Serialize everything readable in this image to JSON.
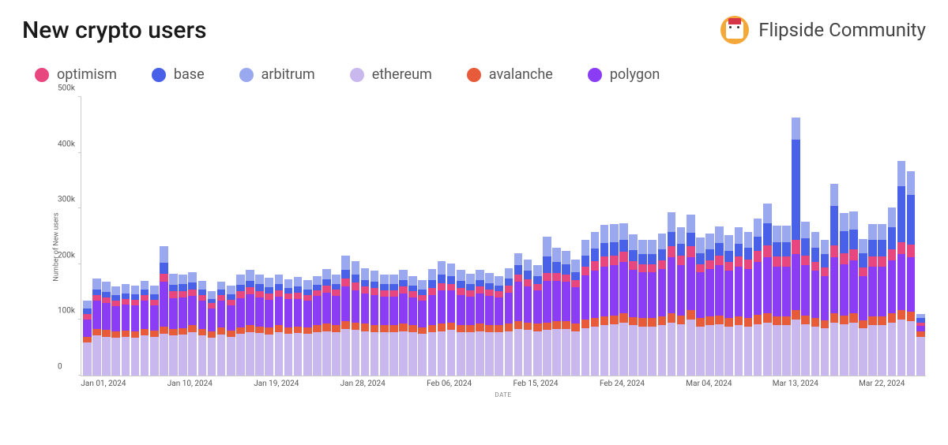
{
  "header": {
    "title": "New crypto users",
    "brand": "Flipside Community"
  },
  "chart": {
    "type": "stacked-bar",
    "ylabel": "Number of New users",
    "xlabel": "DATE",
    "ylim": [
      0,
      500000
    ],
    "ytick_step": 100000,
    "yticks": [
      {
        "v": 0,
        "label": "0"
      },
      {
        "v": 100000,
        "label": "100k"
      },
      {
        "v": 200000,
        "label": "200k"
      },
      {
        "v": 300000,
        "label": "300k"
      },
      {
        "v": 400000,
        "label": "400k"
      },
      {
        "v": 500000,
        "label": "500k"
      }
    ],
    "background_color": "#ffffff",
    "axis_color": "#cccccc",
    "tick_font_color": "#555555",
    "series": [
      {
        "key": "optimism",
        "label": "optimism",
        "color": "#e8467f"
      },
      {
        "key": "base",
        "label": "base",
        "color": "#4960e8"
      },
      {
        "key": "arbitrum",
        "label": "arbitrum",
        "color": "#9aa8ef"
      },
      {
        "key": "ethereum",
        "label": "ethereum",
        "color": "#c8b8ed"
      },
      {
        "key": "avalanche",
        "label": "avalanche",
        "color": "#e85b3a"
      },
      {
        "key": "polygon",
        "label": "polygon",
        "color": "#8a3df5"
      }
    ],
    "stack_order": [
      "ethereum",
      "avalanche",
      "polygon",
      "optimism",
      "base",
      "arbitrum"
    ],
    "xticks": [
      {
        "idx": 0,
        "label": "Jan 01, 2024"
      },
      {
        "idx": 9,
        "label": "Jan 10, 2024"
      },
      {
        "idx": 18,
        "label": "Jan 19, 2024"
      },
      {
        "idx": 27,
        "label": "Jan 28, 2024"
      },
      {
        "idx": 36,
        "label": "Feb 06, 2024"
      },
      {
        "idx": 45,
        "label": "Feb 15, 2024"
      },
      {
        "idx": 54,
        "label": "Feb 24, 2024"
      },
      {
        "idx": 63,
        "label": "Mar 04, 2024"
      },
      {
        "idx": 72,
        "label": "Mar 13, 2024"
      },
      {
        "idx": 81,
        "label": "Mar 22, 2024"
      }
    ],
    "data": [
      {
        "ethereum": 60000,
        "avalanche": 10000,
        "polygon": 30000,
        "optimism": 10000,
        "base": 10000,
        "arbitrum": 15000
      },
      {
        "ethereum": 72000,
        "avalanche": 12000,
        "polygon": 50000,
        "optimism": 10000,
        "base": 10000,
        "arbitrum": 20000
      },
      {
        "ethereum": 70000,
        "avalanche": 12000,
        "polygon": 48000,
        "optimism": 10000,
        "base": 10000,
        "arbitrum": 18000
      },
      {
        "ethereum": 68000,
        "avalanche": 11000,
        "polygon": 45000,
        "optimism": 10000,
        "base": 10000,
        "arbitrum": 16000
      },
      {
        "ethereum": 70000,
        "avalanche": 11000,
        "polygon": 46000,
        "optimism": 10000,
        "base": 10000,
        "arbitrum": 17000
      },
      {
        "ethereum": 68000,
        "avalanche": 12000,
        "polygon": 46000,
        "optimism": 10000,
        "base": 10000,
        "arbitrum": 15000
      },
      {
        "ethereum": 72000,
        "avalanche": 12000,
        "polygon": 50000,
        "optimism": 10000,
        "base": 10000,
        "arbitrum": 16000
      },
      {
        "ethereum": 70000,
        "avalanche": 11000,
        "polygon": 45000,
        "optimism": 10000,
        "base": 10000,
        "arbitrum": 15000
      },
      {
        "ethereum": 75000,
        "avalanche": 13000,
        "polygon": 80000,
        "optimism": 15000,
        "base": 20000,
        "arbitrum": 30000
      },
      {
        "ethereum": 72000,
        "avalanche": 12000,
        "polygon": 55000,
        "optimism": 12000,
        "base": 12000,
        "arbitrum": 20000
      },
      {
        "ethereum": 73000,
        "avalanche": 12000,
        "polygon": 55000,
        "optimism": 12000,
        "base": 12000,
        "arbitrum": 18000
      },
      {
        "ethereum": 78000,
        "avalanche": 13000,
        "polygon": 52000,
        "optimism": 12000,
        "base": 12000,
        "arbitrum": 18000
      },
      {
        "ethereum": 72000,
        "avalanche": 12000,
        "polygon": 50000,
        "optimism": 10000,
        "base": 10000,
        "arbitrum": 16000
      },
      {
        "ethereum": 68000,
        "avalanche": 11000,
        "polygon": 42000,
        "optimism": 9000,
        "base": 8000,
        "arbitrum": 14000
      },
      {
        "ethereum": 74000,
        "avalanche": 12000,
        "polygon": 48000,
        "optimism": 10000,
        "base": 10000,
        "arbitrum": 15000
      },
      {
        "ethereum": 70000,
        "avalanche": 11000,
        "polygon": 45000,
        "optimism": 10000,
        "base": 10000,
        "arbitrum": 15000
      },
      {
        "ethereum": 75000,
        "avalanche": 12000,
        "polygon": 52000,
        "optimism": 12000,
        "base": 12000,
        "arbitrum": 18000
      },
      {
        "ethereum": 78000,
        "avalanche": 13000,
        "polygon": 55000,
        "optimism": 12000,
        "base": 12000,
        "arbitrum": 20000
      },
      {
        "ethereum": 76000,
        "avalanche": 12000,
        "polygon": 52000,
        "optimism": 12000,
        "base": 12000,
        "arbitrum": 18000
      },
      {
        "ethereum": 74000,
        "avalanche": 12000,
        "polygon": 50000,
        "optimism": 11000,
        "base": 11000,
        "arbitrum": 17000
      },
      {
        "ethereum": 78000,
        "avalanche": 12000,
        "polygon": 52000,
        "optimism": 11000,
        "base": 11000,
        "arbitrum": 17000
      },
      {
        "ethereum": 75000,
        "avalanche": 12000,
        "polygon": 50000,
        "optimism": 10000,
        "base": 10000,
        "arbitrum": 16000
      },
      {
        "ethereum": 76000,
        "avalanche": 12000,
        "polygon": 50000,
        "optimism": 11000,
        "base": 11000,
        "arbitrum": 17000
      },
      {
        "ethereum": 75000,
        "avalanche": 12000,
        "polygon": 48000,
        "optimism": 10000,
        "base": 10000,
        "arbitrum": 16000
      },
      {
        "ethereum": 78000,
        "avalanche": 13000,
        "polygon": 52000,
        "optimism": 10000,
        "base": 10000,
        "arbitrum": 16000
      },
      {
        "ethereum": 80000,
        "avalanche": 14000,
        "polygon": 55000,
        "optimism": 12000,
        "base": 12000,
        "arbitrum": 18000
      },
      {
        "ethereum": 78000,
        "avalanche": 13000,
        "polygon": 52000,
        "optimism": 11000,
        "base": 11000,
        "arbitrum": 17000
      },
      {
        "ethereum": 84000,
        "avalanche": 14000,
        "polygon": 62000,
        "optimism": 14000,
        "base": 16000,
        "arbitrum": 25000
      },
      {
        "ethereum": 82000,
        "avalanche": 13000,
        "polygon": 58000,
        "optimism": 14000,
        "base": 15000,
        "arbitrum": 24000
      },
      {
        "ethereum": 80000,
        "avalanche": 13000,
        "polygon": 55000,
        "optimism": 12000,
        "base": 12000,
        "arbitrum": 20000
      },
      {
        "ethereum": 78000,
        "avalanche": 13000,
        "polygon": 54000,
        "optimism": 12000,
        "base": 12000,
        "arbitrum": 20000
      },
      {
        "ethereum": 78000,
        "avalanche": 12000,
        "polygon": 52000,
        "optimism": 11000,
        "base": 11000,
        "arbitrum": 18000
      },
      {
        "ethereum": 78000,
        "avalanche": 12000,
        "polygon": 52000,
        "optimism": 11000,
        "base": 11000,
        "arbitrum": 18000
      },
      {
        "ethereum": 80000,
        "avalanche": 13000,
        "polygon": 55000,
        "optimism": 12000,
        "base": 12000,
        "arbitrum": 18000
      },
      {
        "ethereum": 78000,
        "avalanche": 12000,
        "polygon": 50000,
        "optimism": 11000,
        "base": 11000,
        "arbitrum": 17000
      },
      {
        "ethereum": 75000,
        "avalanche": 12000,
        "polygon": 48000,
        "optimism": 10000,
        "base": 10000,
        "arbitrum": 16000
      },
      {
        "ethereum": 78000,
        "avalanche": 12000,
        "polygon": 55000,
        "optimism": 12000,
        "base": 14000,
        "arbitrum": 20000
      },
      {
        "ethereum": 80000,
        "avalanche": 13000,
        "polygon": 60000,
        "optimism": 13000,
        "base": 15000,
        "arbitrum": 25000
      },
      {
        "ethereum": 82000,
        "avalanche": 13000,
        "polygon": 58000,
        "optimism": 12000,
        "base": 14000,
        "arbitrum": 22000
      },
      {
        "ethereum": 78000,
        "avalanche": 13000,
        "polygon": 54000,
        "optimism": 12000,
        "base": 13000,
        "arbitrum": 20000
      },
      {
        "ethereum": 78000,
        "avalanche": 12000,
        "polygon": 52000,
        "optimism": 11000,
        "base": 12000,
        "arbitrum": 18000
      },
      {
        "ethereum": 80000,
        "avalanche": 13000,
        "polygon": 55000,
        "optimism": 12000,
        "base": 12000,
        "arbitrum": 18000
      },
      {
        "ethereum": 78000,
        "avalanche": 13000,
        "polygon": 52000,
        "optimism": 11000,
        "base": 12000,
        "arbitrum": 18000
      },
      {
        "ethereum": 78000,
        "avalanche": 12000,
        "polygon": 50000,
        "optimism": 11000,
        "base": 11000,
        "arbitrum": 17000
      },
      {
        "ethereum": 80000,
        "avalanche": 13000,
        "polygon": 56000,
        "optimism": 12000,
        "base": 13000,
        "arbitrum": 19000
      },
      {
        "ethereum": 84000,
        "avalanche": 14000,
        "polygon": 70000,
        "optimism": 14000,
        "base": 16000,
        "arbitrum": 22000
      },
      {
        "ethereum": 82000,
        "avalanche": 13000,
        "polygon": 65000,
        "optimism": 13000,
        "base": 15000,
        "arbitrum": 20000
      },
      {
        "ethereum": 80000,
        "avalanche": 13000,
        "polygon": 60000,
        "optimism": 12000,
        "base": 14000,
        "arbitrum": 19000
      },
      {
        "ethereum": 82000,
        "avalanche": 13000,
        "polygon": 75000,
        "optimism": 14000,
        "base": 30000,
        "arbitrum": 35000
      },
      {
        "ethereum": 84000,
        "avalanche": 14000,
        "polygon": 72000,
        "optimism": 14000,
        "base": 20000,
        "arbitrum": 25000
      },
      {
        "ethereum": 84000,
        "avalanche": 14000,
        "polygon": 70000,
        "optimism": 14000,
        "base": 18000,
        "arbitrum": 24000
      },
      {
        "ethereum": 80000,
        "avalanche": 13000,
        "polygon": 65000,
        "optimism": 13000,
        "base": 15000,
        "arbitrum": 22000
      },
      {
        "ethereum": 85000,
        "avalanche": 15000,
        "polygon": 80000,
        "optimism": 16000,
        "base": 20000,
        "arbitrum": 28000
      },
      {
        "ethereum": 88000,
        "avalanche": 15000,
        "polygon": 85000,
        "optimism": 18000,
        "base": 22000,
        "arbitrum": 30000
      },
      {
        "ethereum": 90000,
        "avalanche": 16000,
        "polygon": 90000,
        "optimism": 18000,
        "base": 24000,
        "arbitrum": 32000
      },
      {
        "ethereum": 92000,
        "avalanche": 16000,
        "polygon": 90000,
        "optimism": 18000,
        "base": 24000,
        "arbitrum": 32000
      },
      {
        "ethereum": 95000,
        "avalanche": 17000,
        "polygon": 92000,
        "optimism": 18000,
        "base": 22000,
        "arbitrum": 30000
      },
      {
        "ethereum": 90000,
        "avalanche": 15000,
        "polygon": 85000,
        "optimism": 16000,
        "base": 20000,
        "arbitrum": 28000
      },
      {
        "ethereum": 88000,
        "avalanche": 15000,
        "polygon": 82000,
        "optimism": 15000,
        "base": 18000,
        "arbitrum": 26000
      },
      {
        "ethereum": 88000,
        "avalanche": 15000,
        "polygon": 82000,
        "optimism": 15000,
        "base": 18000,
        "arbitrum": 26000
      },
      {
        "ethereum": 90000,
        "avalanche": 16000,
        "polygon": 85000,
        "optimism": 16000,
        "base": 20000,
        "arbitrum": 28000
      },
      {
        "ethereum": 95000,
        "avalanche": 17000,
        "polygon": 100000,
        "optimism": 20000,
        "base": 26000,
        "arbitrum": 35000
      },
      {
        "ethereum": 92000,
        "avalanche": 16000,
        "polygon": 90000,
        "optimism": 17000,
        "base": 22000,
        "arbitrum": 30000
      },
      {
        "ethereum": 100000,
        "avalanche": 18000,
        "polygon": 95000,
        "optimism": 20000,
        "base": 24000,
        "arbitrum": 32000
      },
      {
        "ethereum": 88000,
        "avalanche": 15000,
        "polygon": 82000,
        "optimism": 15000,
        "base": 20000,
        "arbitrum": 28000
      },
      {
        "ethereum": 90000,
        "avalanche": 16000,
        "polygon": 85000,
        "optimism": 16000,
        "base": 20000,
        "arbitrum": 28000
      },
      {
        "ethereum": 92000,
        "avalanche": 16000,
        "polygon": 90000,
        "optimism": 18000,
        "base": 22000,
        "arbitrum": 30000
      },
      {
        "ethereum": 88000,
        "avalanche": 15000,
        "polygon": 85000,
        "optimism": 16000,
        "base": 20000,
        "arbitrum": 28000
      },
      {
        "ethereum": 90000,
        "avalanche": 16000,
        "polygon": 90000,
        "optimism": 18000,
        "base": 22000,
        "arbitrum": 30000
      },
      {
        "ethereum": 88000,
        "avalanche": 15000,
        "polygon": 88000,
        "optimism": 17000,
        "base": 22000,
        "arbitrum": 28000
      },
      {
        "ethereum": 92000,
        "avalanche": 17000,
        "polygon": 95000,
        "optimism": 20000,
        "base": 26000,
        "arbitrum": 32000
      },
      {
        "ethereum": 95000,
        "avalanche": 17000,
        "polygon": 100000,
        "optimism": 22000,
        "base": 40000,
        "arbitrum": 35000
      },
      {
        "ethereum": 90000,
        "avalanche": 16000,
        "polygon": 90000,
        "optimism": 18000,
        "base": 25000,
        "arbitrum": 30000
      },
      {
        "ethereum": 90000,
        "avalanche": 16000,
        "polygon": 90000,
        "optimism": 18000,
        "base": 25000,
        "arbitrum": 30000
      },
      {
        "ethereum": 100000,
        "avalanche": 18000,
        "polygon": 100000,
        "optimism": 25000,
        "base": 180000,
        "arbitrum": 40000
      },
      {
        "ethereum": 92000,
        "avalanche": 16000,
        "polygon": 90000,
        "optimism": 18000,
        "base": 30000,
        "arbitrum": 30000
      },
      {
        "ethereum": 88000,
        "avalanche": 15000,
        "polygon": 85000,
        "optimism": 16000,
        "base": 26000,
        "arbitrum": 28000
      },
      {
        "ethereum": 85000,
        "avalanche": 14000,
        "polygon": 80000,
        "optimism": 15000,
        "base": 24000,
        "arbitrum": 26000
      },
      {
        "ethereum": 95000,
        "avalanche": 17000,
        "polygon": 100000,
        "optimism": 22000,
        "base": 70000,
        "arbitrum": 40000
      },
      {
        "ethereum": 92000,
        "avalanche": 16000,
        "polygon": 92000,
        "optimism": 20000,
        "base": 40000,
        "arbitrum": 32000
      },
      {
        "ethereum": 95000,
        "avalanche": 17000,
        "polygon": 95000,
        "optimism": 20000,
        "base": 35000,
        "arbitrum": 32000
      },
      {
        "ethereum": 85000,
        "avalanche": 14000,
        "polygon": 80000,
        "optimism": 15000,
        "base": 26000,
        "arbitrum": 25000
      },
      {
        "ethereum": 90000,
        "avalanche": 16000,
        "polygon": 90000,
        "optimism": 18000,
        "base": 30000,
        "arbitrum": 28000
      },
      {
        "ethereum": 90000,
        "avalanche": 16000,
        "polygon": 90000,
        "optimism": 18000,
        "base": 30000,
        "arbitrum": 28000
      },
      {
        "ethereum": 95000,
        "avalanche": 17000,
        "polygon": 95000,
        "optimism": 20000,
        "base": 40000,
        "arbitrum": 35000
      },
      {
        "ethereum": 100000,
        "avalanche": 18000,
        "polygon": 100000,
        "optimism": 22000,
        "base": 100000,
        "arbitrum": 45000
      },
      {
        "ethereum": 98000,
        "avalanche": 17000,
        "polygon": 98000,
        "optimism": 22000,
        "base": 90000,
        "arbitrum": 42000
      },
      {
        "ethereum": 70000,
        "avalanche": 10000,
        "polygon": 10000,
        "optimism": 5000,
        "base": 8000,
        "arbitrum": 8000
      }
    ]
  }
}
